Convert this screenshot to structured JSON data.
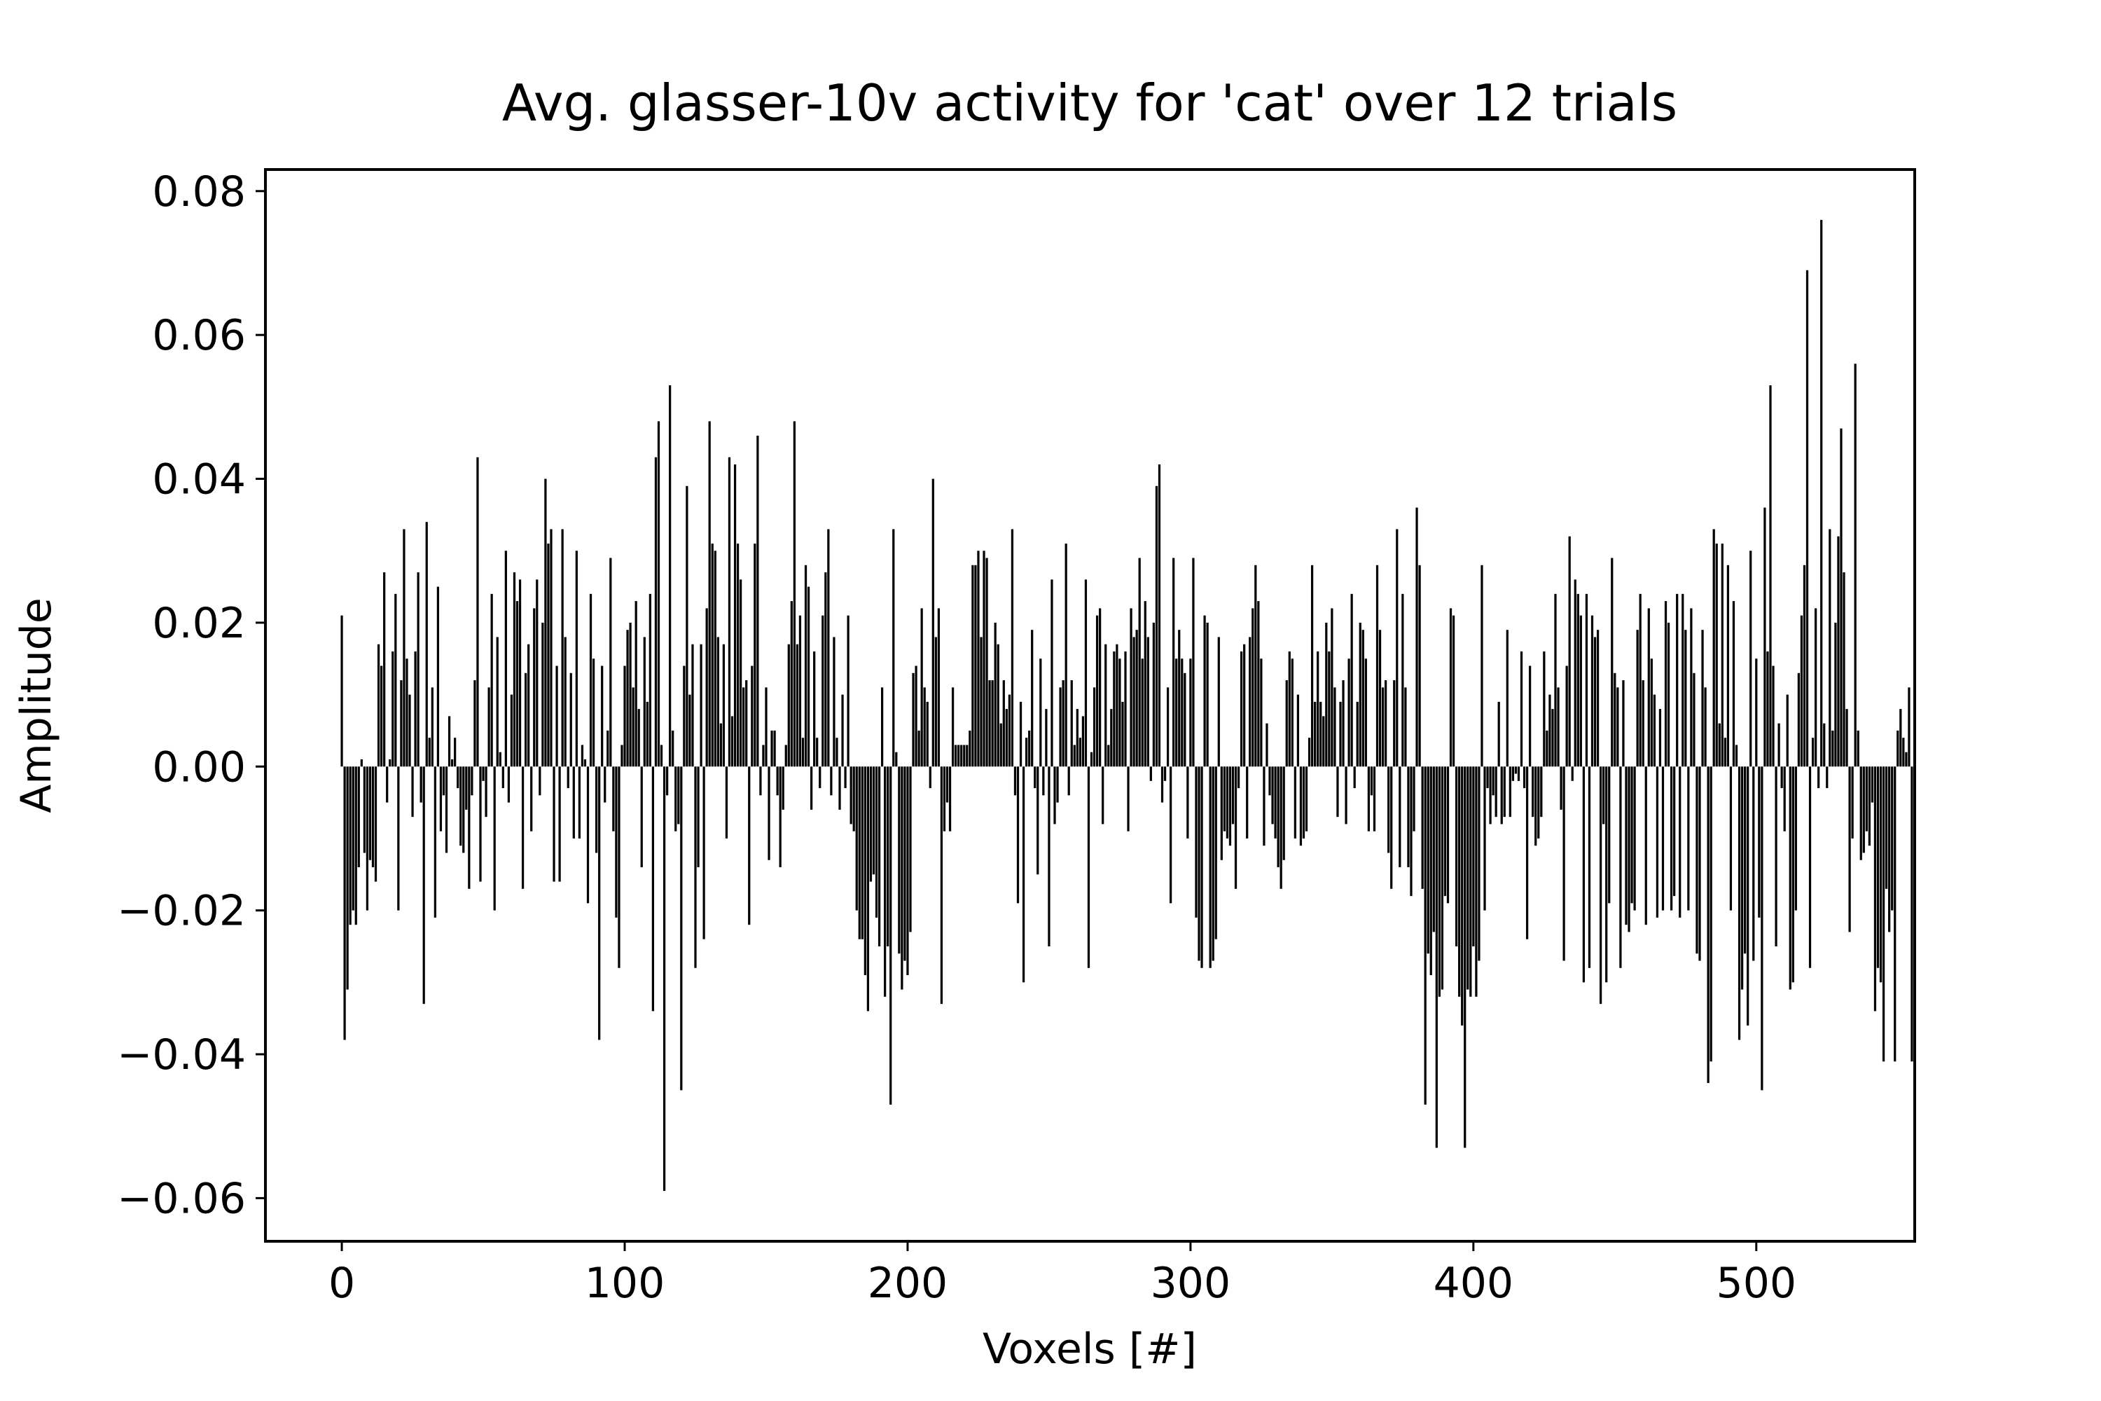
{
  "chart_data": {
    "type": "bar",
    "title": "Avg. glasser-10v activity for 'cat' over 12 trials",
    "xlabel": "Voxels [#]",
    "ylabel": "Amplitude",
    "xlim": [
      -27,
      556
    ],
    "ylim": [
      -0.066,
      0.083
    ],
    "xticks": [
      0,
      100,
      200,
      300,
      400,
      500
    ],
    "xtick_labels": [
      "0",
      "100",
      "200",
      "300",
      "400",
      "500"
    ],
    "yticks": [
      -0.06,
      -0.04,
      -0.02,
      0.0,
      0.02,
      0.04,
      0.06,
      0.08
    ],
    "ytick_labels": [
      "−0.06",
      "−0.04",
      "−0.02",
      "0.00",
      "0.02",
      "0.04",
      "0.06",
      "0.08"
    ],
    "grid": false,
    "bar_color": "#000000",
    "x_start": 0,
    "x_step": 1,
    "values": [
      0.021,
      -0.038,
      -0.031,
      -0.022,
      -0.02,
      -0.022,
      -0.014,
      0.001,
      -0.012,
      -0.02,
      -0.013,
      -0.014,
      -0.016,
      0.017,
      0.014,
      0.027,
      -0.005,
      0.001,
      0.016,
      0.024,
      -0.02,
      0.012,
      0.033,
      0.015,
      0.01,
      -0.007,
      0.016,
      0.027,
      -0.005,
      -0.033,
      0.034,
      0.004,
      0.011,
      -0.021,
      0.025,
      -0.009,
      -0.004,
      -0.012,
      0.007,
      0.001,
      0.004,
      -0.003,
      -0.011,
      -0.012,
      -0.006,
      -0.017,
      -0.004,
      0.012,
      0.043,
      -0.016,
      -0.002,
      -0.007,
      0.011,
      0.024,
      -0.02,
      0.018,
      0.002,
      -0.003,
      0.03,
      -0.005,
      0.01,
      0.027,
      0.023,
      0.026,
      -0.017,
      0.013,
      0.017,
      -0.009,
      0.022,
      0.026,
      -0.004,
      0.02,
      0.04,
      0.031,
      0.033,
      -0.016,
      0.014,
      -0.016,
      0.033,
      0.018,
      -0.003,
      0.013,
      -0.01,
      0.03,
      -0.01,
      0.003,
      0.001,
      -0.019,
      0.024,
      0.015,
      -0.012,
      -0.038,
      0.014,
      -0.005,
      0.005,
      0.029,
      -0.009,
      -0.021,
      -0.028,
      0.003,
      0.014,
      0.019,
      0.02,
      0.011,
      0.023,
      0.008,
      -0.014,
      0.018,
      0.009,
      0.024,
      -0.034,
      0.043,
      0.048,
      0.003,
      -0.059,
      -0.004,
      0.053,
      0.005,
      -0.009,
      -0.008,
      -0.045,
      0.014,
      0.039,
      0.01,
      0.017,
      -0.028,
      -0.014,
      0.017,
      -0.024,
      0.022,
      0.048,
      0.031,
      0.03,
      0.018,
      0.006,
      0.017,
      -0.01,
      0.043,
      0.007,
      0.042,
      0.031,
      0.026,
      0.011,
      0.012,
      -0.022,
      0.014,
      0.031,
      0.046,
      -0.004,
      0.003,
      0.011,
      -0.013,
      0.005,
      0.005,
      -0.004,
      -0.014,
      -0.006,
      0.003,
      0.017,
      0.023,
      0.048,
      0.017,
      0.021,
      0.004,
      0.028,
      0.025,
      -0.006,
      0.016,
      0.004,
      -0.003,
      0.021,
      0.027,
      0.033,
      -0.004,
      0.018,
      0.004,
      -0.006,
      0.01,
      -0.003,
      0.021,
      -0.008,
      -0.009,
      -0.02,
      -0.024,
      -0.024,
      -0.029,
      -0.034,
      -0.016,
      -0.015,
      -0.021,
      -0.025,
      0.011,
      -0.032,
      -0.025,
      -0.047,
      0.033,
      0.002,
      -0.026,
      -0.031,
      -0.027,
      -0.029,
      -0.023,
      0.013,
      0.014,
      0.005,
      0.022,
      0.011,
      0.009,
      -0.003,
      0.04,
      0.018,
      0.022,
      -0.033,
      -0.009,
      -0.005,
      -0.009,
      0.011,
      0.003,
      0.003,
      0.003,
      0.003,
      0.003,
      0.005,
      0.028,
      0.028,
      0.03,
      0.018,
      0.03,
      0.029,
      0.012,
      0.012,
      0.02,
      0.017,
      0.006,
      0.012,
      0.008,
      0.01,
      0.033,
      -0.004,
      -0.019,
      0.009,
      -0.03,
      0.004,
      0.005,
      0.019,
      -0.003,
      -0.015,
      0.015,
      -0.004,
      0.008,
      -0.025,
      0.026,
      -0.008,
      -0.005,
      0.011,
      0.012,
      0.031,
      -0.004,
      0.012,
      0.003,
      0.008,
      0.004,
      0.007,
      0.026,
      -0.028,
      0.002,
      0.011,
      0.021,
      0.022,
      -0.008,
      0.017,
      0.003,
      0.008,
      0.016,
      0.017,
      0.015,
      0.009,
      0.016,
      -0.009,
      0.022,
      0.018,
      0.019,
      0.029,
      0.015,
      0.023,
      0.018,
      -0.002,
      0.02,
      0.039,
      0.042,
      -0.005,
      -0.002,
      0.011,
      -0.019,
      0.029,
      0.015,
      0.019,
      0.015,
      0.013,
      -0.01,
      0.015,
      0.029,
      -0.021,
      -0.027,
      -0.028,
      0.021,
      0.02,
      -0.028,
      -0.027,
      -0.024,
      0.018,
      -0.013,
      -0.009,
      -0.01,
      -0.011,
      -0.008,
      -0.017,
      -0.003,
      0.016,
      0.017,
      -0.01,
      0.018,
      0.022,
      0.028,
      0.023,
      0.015,
      -0.011,
      0.006,
      -0.004,
      -0.008,
      -0.01,
      -0.014,
      -0.017,
      -0.013,
      0.012,
      0.016,
      0.015,
      -0.01,
      0.01,
      -0.011,
      -0.01,
      -0.009,
      0.004,
      0.028,
      0.009,
      0.016,
      0.009,
      0.007,
      0.02,
      0.016,
      0.022,
      0.011,
      -0.007,
      0.009,
      0.012,
      -0.008,
      0.015,
      0.024,
      -0.003,
      0.009,
      0.02,
      0.019,
      0.015,
      -0.009,
      -0.004,
      -0.009,
      0.028,
      0.019,
      0.011,
      0.012,
      -0.012,
      -0.017,
      0.012,
      0.033,
      -0.014,
      0.024,
      0.011,
      -0.014,
      -0.018,
      -0.009,
      0.036,
      0.028,
      -0.017,
      -0.047,
      -0.026,
      -0.029,
      -0.023,
      -0.053,
      -0.032,
      -0.031,
      -0.018,
      -0.019,
      0.022,
      0.021,
      -0.025,
      -0.032,
      -0.036,
      -0.053,
      -0.031,
      -0.032,
      -0.025,
      -0.032,
      -0.027,
      0.028,
      -0.02,
      -0.003,
      -0.008,
      -0.004,
      -0.007,
      0.009,
      -0.008,
      -0.007,
      0.019,
      -0.007,
      -0.002,
      -0.001,
      -0.002,
      0.016,
      -0.003,
      -0.024,
      0.014,
      -0.007,
      -0.011,
      -0.01,
      -0.007,
      0.016,
      0.005,
      0.01,
      0.008,
      0.024,
      0.011,
      -0.006,
      -0.027,
      0.014,
      0.032,
      -0.002,
      0.026,
      0.024,
      0.021,
      -0.03,
      0.024,
      -0.028,
      0.021,
      0.018,
      0.019,
      -0.033,
      -0.008,
      -0.03,
      -0.019,
      0.029,
      0.013,
      0.011,
      -0.028,
      0.012,
      -0.022,
      -0.023,
      -0.019,
      -0.02,
      0.019,
      0.024,
      0.012,
      -0.022,
      0.022,
      0.015,
      0.01,
      -0.021,
      0.008,
      -0.02,
      0.023,
      0.02,
      -0.02,
      -0.018,
      0.024,
      -0.021,
      0.024,
      0.019,
      -0.02,
      0.022,
      0.013,
      -0.026,
      -0.027,
      0.019,
      0.011,
      -0.044,
      -0.041,
      0.033,
      0.031,
      0.006,
      0.031,
      0.004,
      0.028,
      -0.02,
      0.023,
      0.003,
      -0.038,
      -0.031,
      -0.026,
      -0.036,
      0.03,
      -0.027,
      0.015,
      -0.021,
      -0.045,
      0.036,
      0.016,
      0.053,
      0.014,
      -0.025,
      0.006,
      -0.003,
      -0.009,
      0.01,
      -0.031,
      -0.03,
      -0.02,
      0.013,
      0.021,
      0.028,
      0.069,
      -0.028,
      0.004,
      0.022,
      -0.003,
      0.076,
      0.006,
      -0.003,
      0.033,
      0.005,
      0.02,
      0.032,
      0.047,
      0.027,
      0.008,
      -0.023,
      -0.01,
      0.056,
      0.005,
      -0.013,
      -0.012,
      -0.009,
      -0.011,
      -0.005,
      -0.034,
      -0.028,
      -0.03,
      -0.041,
      -0.017,
      -0.023,
      -0.02,
      -0.041,
      0.005,
      0.008,
      0.004,
      0.002,
      0.011,
      -0.041
    ]
  }
}
